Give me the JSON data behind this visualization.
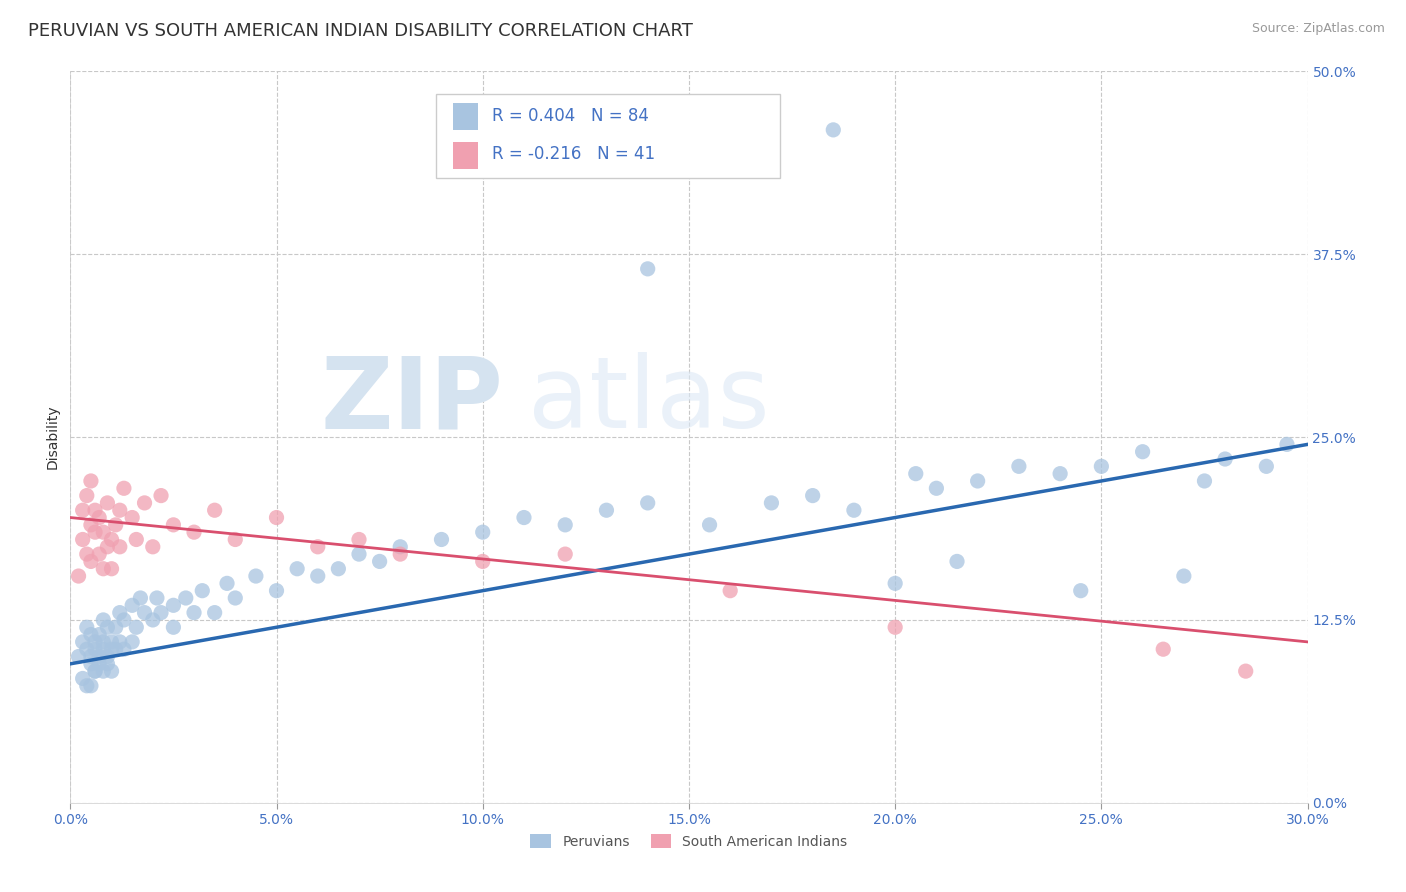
{
  "title": "PERUVIAN VS SOUTH AMERICAN INDIAN DISABILITY CORRELATION CHART",
  "source": "Source: ZipAtlas.com",
  "xlabel_vals": [
    0.0,
    5.0,
    10.0,
    15.0,
    20.0,
    25.0,
    30.0
  ],
  "ylabel_vals": [
    0.0,
    12.5,
    25.0,
    37.5,
    50.0
  ],
  "xlim": [
    0.0,
    30.0
  ],
  "ylim": [
    0.0,
    50.0
  ],
  "peruvian_color": "#a8c4e0",
  "peruvian_line_color": "#2968b0",
  "sai_color": "#f0a0b0",
  "sai_line_color": "#d94f6e",
  "R_peruvian": 0.404,
  "N_peruvian": 84,
  "R_sai": -0.216,
  "N_sai": 41,
  "legend_label_peruvian": "Peruvians",
  "legend_label_sai": "South American Indians",
  "ylabel": "Disability",
  "watermark_zip": "ZIP",
  "watermark_atlas": "atlas",
  "title_fontsize": 13,
  "axis_label_fontsize": 10,
  "tick_fontsize": 10,
  "tick_color": "#4472c4",
  "peruvian_x": [
    0.2,
    0.3,
    0.3,
    0.4,
    0.4,
    0.4,
    0.5,
    0.5,
    0.5,
    0.5,
    0.6,
    0.6,
    0.6,
    0.6,
    0.7,
    0.7,
    0.7,
    0.8,
    0.8,
    0.8,
    0.8,
    0.9,
    0.9,
    0.9,
    1.0,
    1.0,
    1.0,
    1.1,
    1.1,
    1.2,
    1.2,
    1.3,
    1.3,
    1.5,
    1.5,
    1.6,
    1.7,
    1.8,
    2.0,
    2.1,
    2.2,
    2.5,
    2.5,
    2.8,
    3.0,
    3.2,
    3.5,
    3.8,
    4.0,
    4.5,
    5.0,
    5.5,
    6.0,
    6.5,
    7.0,
    7.5,
    8.0,
    9.0,
    10.0,
    11.0,
    12.0,
    13.0,
    14.0,
    15.5,
    17.0,
    18.0,
    19.0,
    20.5,
    21.0,
    22.0,
    23.0,
    24.0,
    25.0,
    26.0,
    27.5,
    28.0,
    29.0,
    29.5,
    14.0,
    18.5,
    20.0,
    21.5,
    24.5,
    27.0
  ],
  "peruvian_y": [
    10.0,
    8.5,
    11.0,
    8.0,
    10.5,
    12.0,
    9.5,
    11.5,
    10.0,
    8.0,
    9.0,
    11.0,
    10.5,
    9.0,
    10.0,
    11.5,
    9.5,
    10.5,
    12.5,
    9.0,
    11.0,
    12.0,
    10.0,
    9.5,
    11.0,
    10.5,
    9.0,
    12.0,
    10.5,
    11.0,
    13.0,
    10.5,
    12.5,
    13.5,
    11.0,
    12.0,
    14.0,
    13.0,
    12.5,
    14.0,
    13.0,
    13.5,
    12.0,
    14.0,
    13.0,
    14.5,
    13.0,
    15.0,
    14.0,
    15.5,
    14.5,
    16.0,
    15.5,
    16.0,
    17.0,
    16.5,
    17.5,
    18.0,
    18.5,
    19.5,
    19.0,
    20.0,
    20.5,
    19.0,
    20.5,
    21.0,
    20.0,
    22.5,
    21.5,
    22.0,
    23.0,
    22.5,
    23.0,
    24.0,
    22.0,
    23.5,
    23.0,
    24.5,
    36.5,
    46.0,
    15.0,
    16.5,
    14.5,
    15.5
  ],
  "sai_x": [
    0.2,
    0.3,
    0.3,
    0.4,
    0.4,
    0.5,
    0.5,
    0.5,
    0.6,
    0.6,
    0.7,
    0.7,
    0.8,
    0.8,
    0.9,
    0.9,
    1.0,
    1.0,
    1.1,
    1.2,
    1.2,
    1.3,
    1.5,
    1.6,
    1.8,
    2.0,
    2.2,
    2.5,
    3.0,
    3.5,
    4.0,
    5.0,
    6.0,
    7.0,
    8.0,
    10.0,
    12.0,
    16.0,
    20.0,
    26.5,
    28.5
  ],
  "sai_y": [
    15.5,
    18.0,
    20.0,
    17.0,
    21.0,
    16.5,
    19.0,
    22.0,
    18.5,
    20.0,
    17.0,
    19.5,
    16.0,
    18.5,
    17.5,
    20.5,
    16.0,
    18.0,
    19.0,
    17.5,
    20.0,
    21.5,
    19.5,
    18.0,
    20.5,
    17.5,
    21.0,
    19.0,
    18.5,
    20.0,
    18.0,
    19.5,
    17.5,
    18.0,
    17.0,
    16.5,
    17.0,
    14.5,
    12.0,
    10.5,
    9.0
  ],
  "peruvian_trend_x": [
    0.0,
    30.0
  ],
  "peruvian_trend_y": [
    9.5,
    24.5
  ],
  "sai_trend_x": [
    0.0,
    30.0
  ],
  "sai_trend_y": [
    19.5,
    11.0
  ],
  "background_color": "#ffffff",
  "grid_color": "#c8c8c8"
}
